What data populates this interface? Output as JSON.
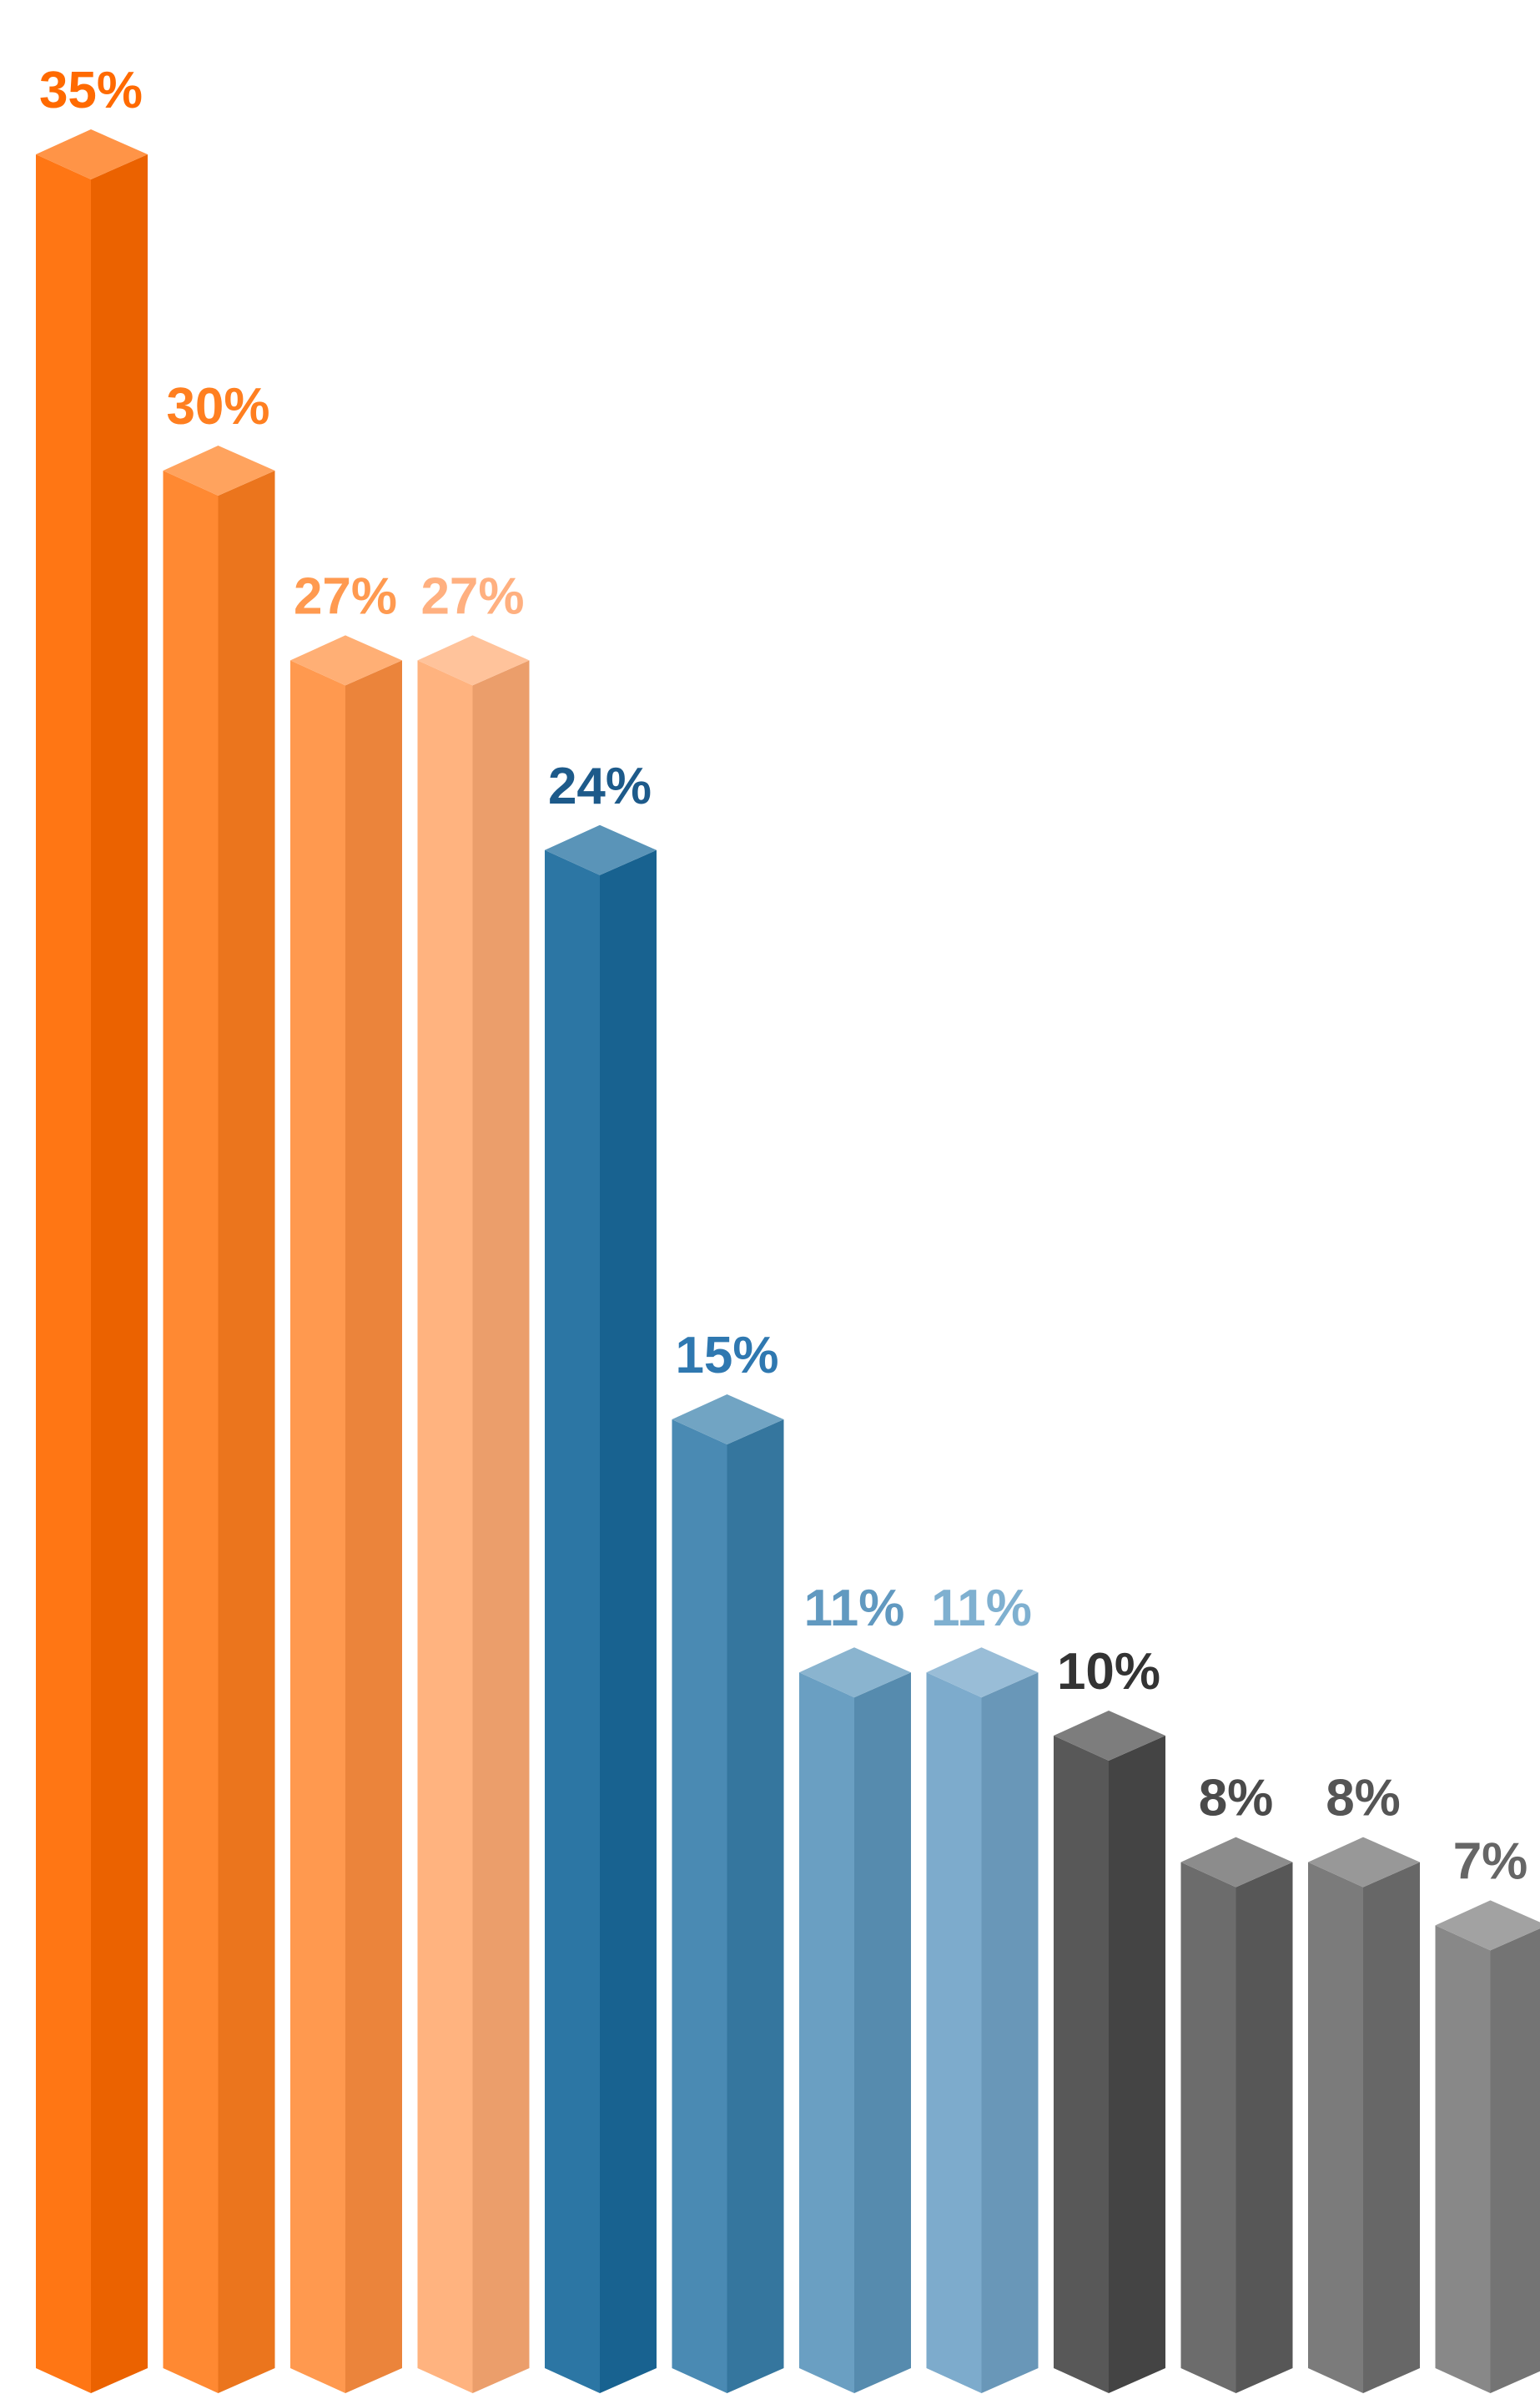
{
  "chart_data": {
    "type": "bar",
    "title": "",
    "xlabel": "",
    "ylabel": "",
    "ylim": [
      0,
      35
    ],
    "grid": false,
    "legend": "none",
    "style": "3d-isometric-columns",
    "values": [
      35,
      30,
      27,
      27,
      24,
      15,
      11,
      11,
      10,
      8,
      8,
      7
    ],
    "data_labels": [
      "35%",
      "30%",
      "27%",
      "27%",
      "24%",
      "15%",
      "11%",
      "11%",
      "10%",
      "8%",
      "8%",
      "7%"
    ],
    "colors": [
      "#ff6a00",
      "#ff7f20",
      "#ff9040",
      "#ffac74",
      "#1a6a9c",
      "#3a80ac",
      "#5d97bd",
      "#72a4c8",
      "#4a4a4a",
      "#5f5f5f",
      "#707070",
      "#7e7e7e"
    ],
    "label_colors": [
      "#ff6a00",
      "#ff7f20",
      "#ff9a50",
      "#ffb080",
      "#1d5a8a",
      "#2f78b0",
      "#6199c0",
      "#7fb0d0",
      "#333333",
      "#4a4a4a",
      "#555555",
      "#666666"
    ]
  }
}
